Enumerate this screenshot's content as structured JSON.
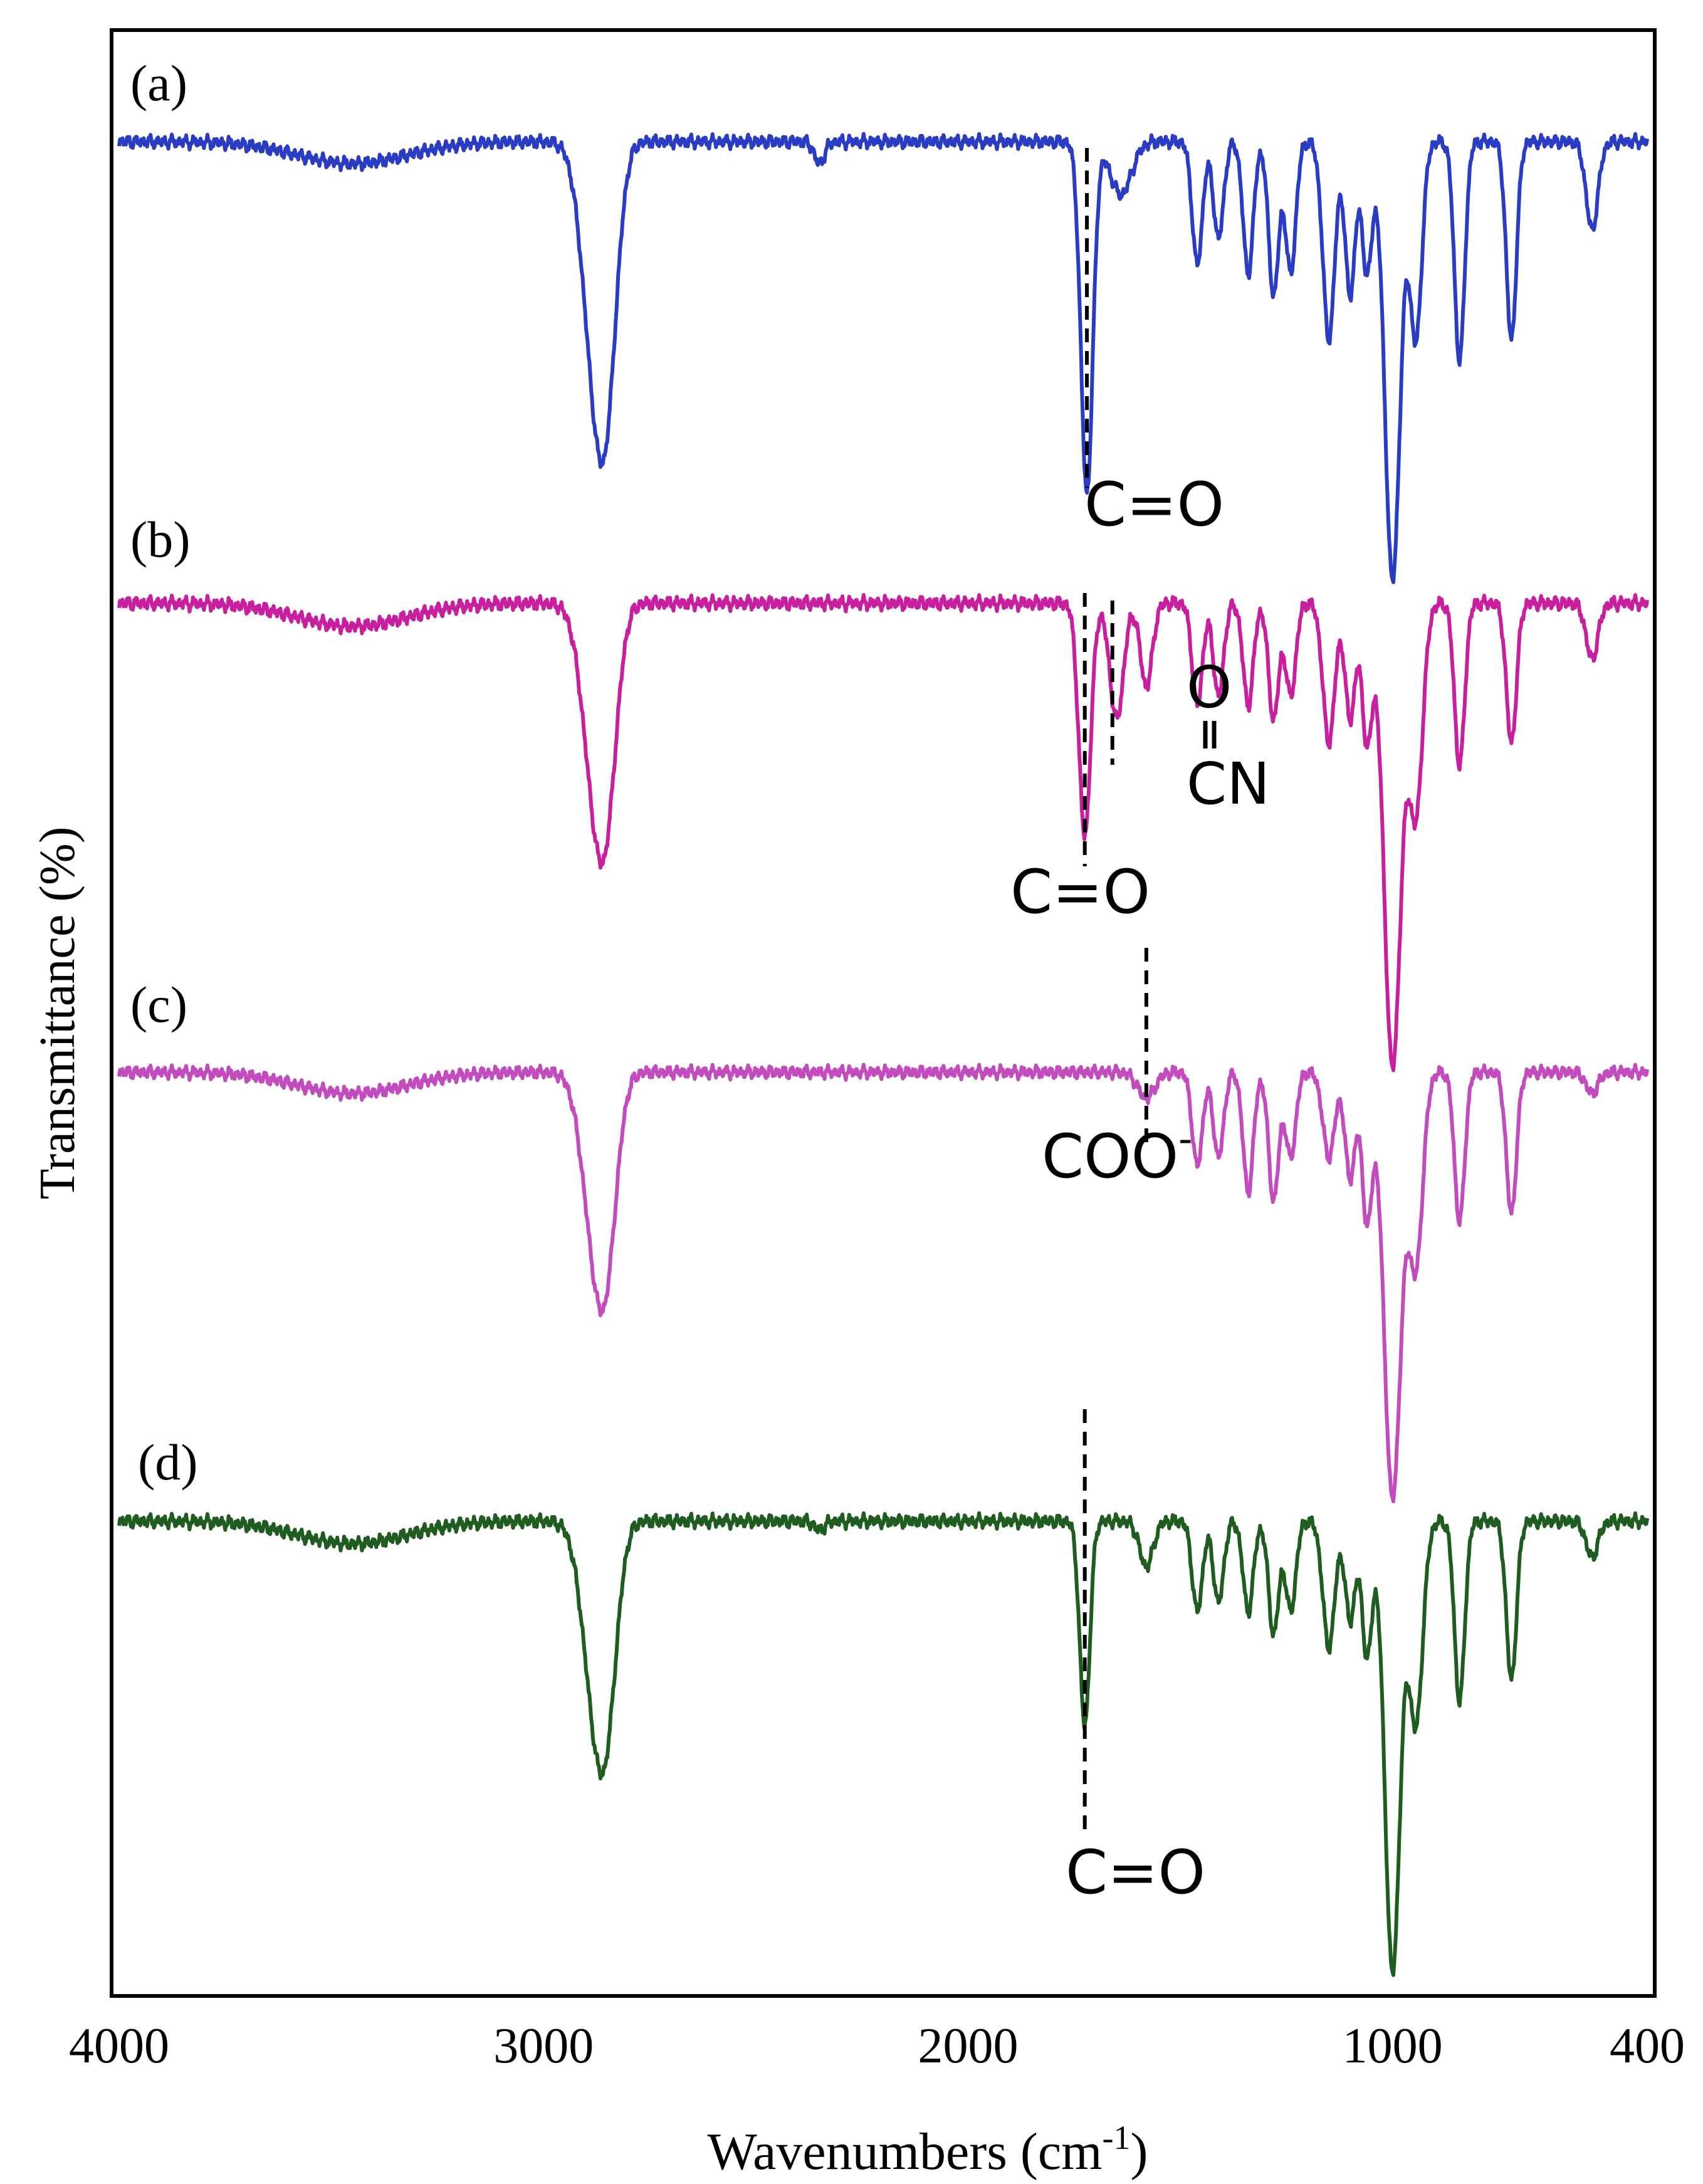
{
  "chart_data": {
    "type": "line",
    "xlabel": "Wavenumbers (cm",
    "xlabel_sup": "-1",
    "xlabel_close": ")",
    "ylabel": "Transmittance (%)",
    "xlim": [
      4000,
      400
    ],
    "xticks": [
      {
        "value": 4000,
        "label": "4000"
      },
      {
        "value": 3000,
        "label": "3000"
      },
      {
        "value": 2000,
        "label": "2000"
      },
      {
        "value": 1000,
        "label": "1000"
      },
      {
        "value": 400,
        "label": "400"
      }
    ],
    "series": [
      {
        "name": "(a)",
        "color": "#2b3cc4",
        "baseline": 0.97,
        "peaks": [
          [
            3450,
            0.05,
            130
          ],
          [
            2880,
            0.45,
            30
          ],
          [
            2850,
            0.4,
            25
          ],
          [
            2350,
            0.05,
            12
          ],
          [
            1720,
            0.8,
            14
          ],
          [
            1640,
            0.12,
            25
          ],
          [
            1460,
            0.28,
            12
          ],
          [
            1410,
            0.22,
            12
          ],
          [
            1340,
            0.3,
            12
          ],
          [
            1280,
            0.35,
            12
          ],
          [
            1240,
            0.3,
            12
          ],
          [
            1150,
            0.45,
            14
          ],
          [
            1100,
            0.35,
            12
          ],
          [
            1060,
            0.3,
            12
          ],
          [
            1000,
            1.0,
            18
          ],
          [
            945,
            0.45,
            14
          ],
          [
            842,
            0.5,
            12
          ],
          [
            720,
            0.45,
            12
          ],
          [
            530,
            0.2,
            14
          ]
        ]
      },
      {
        "name": "(b)",
        "color": "#c81f9f",
        "baseline": 0.97,
        "peaks": [
          [
            3450,
            0.05,
            130
          ],
          [
            2880,
            0.35,
            30
          ],
          [
            2850,
            0.3,
            25
          ],
          [
            1725,
            0.5,
            14
          ],
          [
            1650,
            0.25,
            16
          ],
          [
            1580,
            0.18,
            14
          ],
          [
            1460,
            0.22,
            12
          ],
          [
            1410,
            0.2,
            12
          ],
          [
            1340,
            0.22,
            12
          ],
          [
            1280,
            0.25,
            12
          ],
          [
            1240,
            0.2,
            12
          ],
          [
            1150,
            0.3,
            14
          ],
          [
            1100,
            0.25,
            12
          ],
          [
            1060,
            0.3,
            12
          ],
          [
            1000,
            1.0,
            20
          ],
          [
            945,
            0.45,
            16
          ],
          [
            842,
            0.35,
            12
          ],
          [
            720,
            0.3,
            12
          ],
          [
            530,
            0.12,
            14
          ]
        ]
      },
      {
        "name": "(c)",
        "color": "#c24bbd",
        "baseline": 0.97,
        "peaks": [
          [
            3450,
            0.05,
            130
          ],
          [
            2880,
            0.35,
            30
          ],
          [
            2850,
            0.3,
            25
          ],
          [
            1580,
            0.06,
            20
          ],
          [
            1460,
            0.22,
            12
          ],
          [
            1410,
            0.2,
            12
          ],
          [
            1340,
            0.28,
            12
          ],
          [
            1280,
            0.3,
            12
          ],
          [
            1240,
            0.2,
            12
          ],
          [
            1150,
            0.2,
            14
          ],
          [
            1100,
            0.25,
            12
          ],
          [
            1060,
            0.35,
            12
          ],
          [
            1000,
            1.0,
            20
          ],
          [
            945,
            0.45,
            16
          ],
          [
            842,
            0.35,
            12
          ],
          [
            720,
            0.33,
            12
          ],
          [
            530,
            0.05,
            14
          ]
        ]
      },
      {
        "name": "(d)",
        "color": "#1f5c1f",
        "baseline": 0.97,
        "peaks": [
          [
            3450,
            0.05,
            130
          ],
          [
            2880,
            0.35,
            30
          ],
          [
            2850,
            0.3,
            25
          ],
          [
            2350,
            0.02,
            12
          ],
          [
            1725,
            0.45,
            12
          ],
          [
            1580,
            0.1,
            16
          ],
          [
            1460,
            0.2,
            12
          ],
          [
            1410,
            0.18,
            12
          ],
          [
            1340,
            0.2,
            12
          ],
          [
            1280,
            0.25,
            12
          ],
          [
            1240,
            0.2,
            12
          ],
          [
            1150,
            0.28,
            14
          ],
          [
            1100,
            0.22,
            12
          ],
          [
            1060,
            0.3,
            12
          ],
          [
            1000,
            1.0,
            18
          ],
          [
            945,
            0.45,
            16
          ],
          [
            842,
            0.4,
            12
          ],
          [
            720,
            0.35,
            12
          ],
          [
            530,
            0.08,
            14
          ]
        ]
      }
    ],
    "annotations": [
      {
        "text": "C=O",
        "series": "(a)",
        "x": 1720
      },
      {
        "text": "C=O",
        "series": "(b)",
        "x": 1725
      },
      {
        "text": "O",
        "series": "(b)",
        "x": 1650
      },
      {
        "text": "CN",
        "series": "(b)",
        "x": 1650
      },
      {
        "text": "COO",
        "sup": "-",
        "series": "(c)",
        "x": 1580
      },
      {
        "text": "C=O",
        "series": "(d)",
        "x": 1725
      }
    ]
  }
}
